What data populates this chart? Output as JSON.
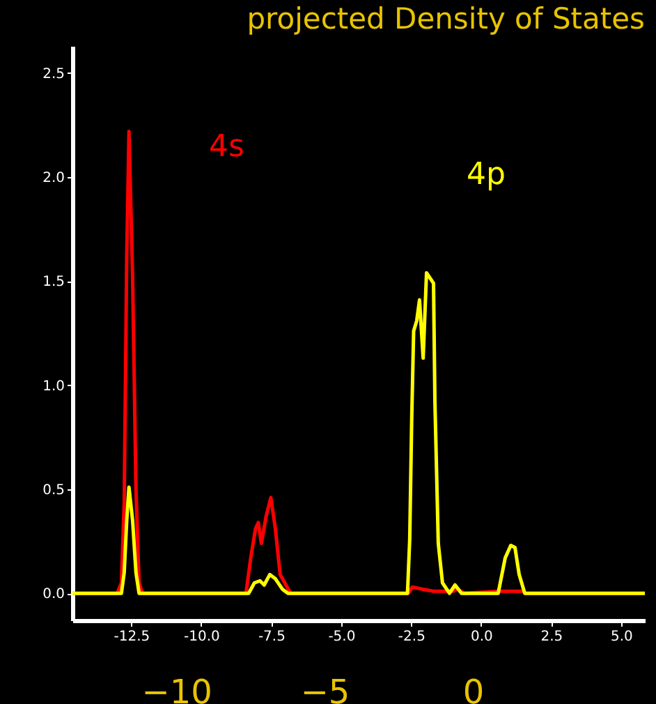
{
  "chart_data": {
    "type": "line",
    "title": "projected Density of States",
    "xlim": [
      -14.6,
      5.85
    ],
    "xticks": [
      {
        "value": -12.5,
        "label": "-12.5"
      },
      {
        "value": -10,
        "label": "-10.0"
      },
      {
        "value": -7.5,
        "label": "-7.5"
      },
      {
        "value": -5,
        "label": "-5.0"
      },
      {
        "value": -2.5,
        "label": "-2.5"
      },
      {
        "value": 0,
        "label": "0.0"
      },
      {
        "value": 2.5,
        "label": "2.5"
      },
      {
        "value": 5,
        "label": "5.0"
      }
    ],
    "x2lim": [
      -13.5,
      5.8
    ],
    "x2ticks": [
      -10,
      -5,
      0
    ],
    "ylim": [
      -0.13,
      2.63
    ],
    "yticks": [
      {
        "value": 0,
        "label": "0.0"
      },
      0.5,
      {
        "value": 1,
        "label": "1.0"
      },
      1.5,
      {
        "value": 2,
        "label": "2.0"
      },
      2.5
    ],
    "grid": false,
    "line_style": "solid",
    "marker": "none",
    "series": [
      {
        "name": "4s",
        "color": "#ff0000",
        "x": [
          -14.6,
          -13.0,
          -12.85,
          -12.75,
          -12.66,
          -12.58,
          -12.45,
          -12.33,
          -12.22,
          -12.1,
          -8.4,
          -8.23,
          -8.06,
          -7.96,
          -7.85,
          -7.68,
          -7.51,
          -7.35,
          -7.18,
          -6.93,
          -6.8,
          -2.6,
          -2.45,
          -2.1,
          -1.7,
          -1.0,
          -0.85,
          -0.6,
          0.6,
          1.5,
          1.6,
          5.85
        ],
        "values": [
          0,
          0,
          0.05,
          0.44,
          1.62,
          2.22,
          1.52,
          0.5,
          0.05,
          0,
          0,
          0.17,
          0.31,
          0.34,
          0.24,
          0.37,
          0.46,
          0.31,
          0.09,
          0.03,
          0,
          0,
          0.03,
          0.02,
          0.01,
          0.01,
          0.02,
          0,
          0.01,
          0.01,
          0,
          0
        ]
      },
      {
        "name": "4p",
        "color": "#ffff00",
        "x": [
          -14.6,
          -12.85,
          -12.75,
          -12.66,
          -12.58,
          -12.45,
          -12.33,
          -12.22,
          -8.3,
          -8.1,
          -7.9,
          -7.75,
          -7.55,
          -7.35,
          -7.1,
          -6.9,
          -2.63,
          -2.55,
          -2.48,
          -2.41,
          -2.3,
          -2.2,
          -2.07,
          -1.95,
          -1.7,
          -1.65,
          -1.53,
          -1.38,
          -1.13,
          -0.93,
          -0.7,
          0.61,
          0.86,
          1.06,
          1.21,
          1.36,
          1.56,
          5.85
        ],
        "values": [
          0,
          0,
          0.1,
          0.35,
          0.51,
          0.35,
          0.1,
          0,
          0,
          0.05,
          0.06,
          0.04,
          0.09,
          0.07,
          0.02,
          0,
          0,
          0.26,
          0.83,
          1.26,
          1.31,
          1.41,
          1.13,
          1.54,
          1.49,
          0.92,
          0.24,
          0.05,
          0,
          0.04,
          0,
          0,
          0.17,
          0.23,
          0.22,
          0.09,
          0,
          0
        ]
      }
    ]
  }
}
